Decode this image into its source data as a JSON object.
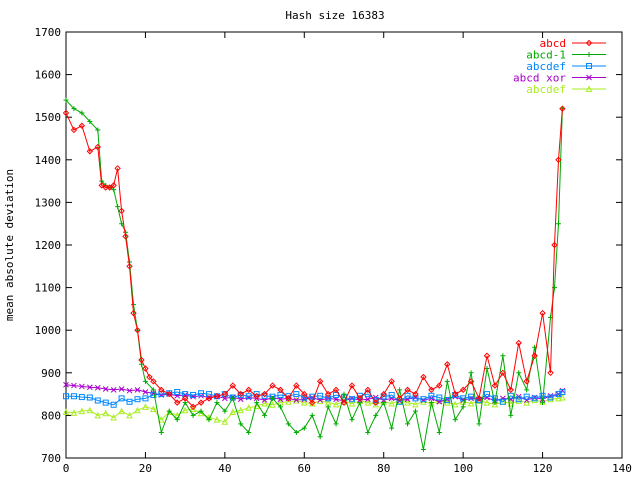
{
  "chart_data": {
    "type": "line",
    "title": "Hash size 16383",
    "xlabel": "",
    "ylabel": "mean absolute deviation",
    "xlim": [
      0,
      140
    ],
    "ylim": [
      700,
      1700
    ],
    "x_ticks": [
      0,
      20,
      40,
      60,
      80,
      100,
      120,
      140
    ],
    "y_ticks": [
      700,
      800,
      900,
      1000,
      1100,
      1200,
      1300,
      1400,
      1500,
      1600,
      1700
    ],
    "grid": false,
    "legend_position": "top-right",
    "series": [
      {
        "name": "abcd",
        "color": "#ff0000",
        "marker": "diamond",
        "x": [
          0,
          2,
          4,
          6,
          8,
          9,
          10,
          11,
          12,
          13,
          14,
          15,
          16,
          17,
          18,
          19,
          20,
          21,
          22,
          24,
          26,
          28,
          30,
          32,
          34,
          36,
          38,
          40,
          42,
          44,
          46,
          48,
          50,
          52,
          54,
          56,
          58,
          60,
          62,
          64,
          66,
          68,
          70,
          72,
          74,
          76,
          78,
          80,
          82,
          84,
          86,
          88,
          90,
          92,
          94,
          96,
          98,
          100,
          102,
          104,
          106,
          108,
          110,
          112,
          114,
          116,
          118,
          120,
          122,
          123,
          124,
          125
        ],
        "y": [
          1510,
          1470,
          1480,
          1420,
          1430,
          1340,
          1335,
          1335,
          1340,
          1380,
          1280,
          1220,
          1150,
          1040,
          1000,
          930,
          910,
          890,
          880,
          860,
          850,
          830,
          840,
          820,
          830,
          840,
          845,
          850,
          870,
          850,
          860,
          845,
          850,
          870,
          860,
          840,
          870,
          850,
          830,
          880,
          850,
          860,
          830,
          870,
          840,
          860,
          830,
          850,
          880,
          840,
          860,
          850,
          890,
          860,
          870,
          920,
          850,
          860,
          880,
          840,
          940,
          870,
          900,
          860,
          970,
          880,
          940,
          1040,
          900,
          1200,
          1400,
          1520
        ]
      },
      {
        "name": "abcd-1",
        "color": "#00aa00",
        "marker": "plus",
        "x": [
          0,
          2,
          4,
          6,
          8,
          9,
          10,
          11,
          12,
          13,
          14,
          15,
          16,
          17,
          18,
          19,
          20,
          22,
          24,
          26,
          28,
          30,
          32,
          34,
          36,
          38,
          40,
          42,
          44,
          46,
          48,
          50,
          52,
          54,
          56,
          58,
          60,
          62,
          64,
          66,
          68,
          70,
          72,
          74,
          76,
          78,
          80,
          82,
          84,
          86,
          88,
          90,
          92,
          94,
          96,
          98,
          100,
          102,
          104,
          106,
          108,
          110,
          112,
          114,
          116,
          118,
          120,
          122,
          123,
          124,
          125
        ],
        "y": [
          1540,
          1520,
          1510,
          1490,
          1470,
          1350,
          1340,
          1335,
          1330,
          1290,
          1250,
          1230,
          1160,
          1060,
          1000,
          920,
          880,
          860,
          760,
          810,
          790,
          830,
          800,
          810,
          790,
          830,
          810,
          840,
          780,
          760,
          830,
          800,
          840,
          820,
          780,
          760,
          770,
          800,
          750,
          820,
          780,
          850,
          790,
          830,
          760,
          800,
          830,
          770,
          860,
          780,
          810,
          720,
          830,
          760,
          880,
          790,
          820,
          900,
          780,
          910,
          830,
          940,
          800,
          900,
          860,
          960,
          830,
          1030,
          1100,
          1250,
          1520
        ]
      },
      {
        "name": "abcdef",
        "color": "#0088ff",
        "marker": "square",
        "x": [
          0,
          2,
          4,
          6,
          8,
          10,
          12,
          14,
          16,
          18,
          20,
          22,
          24,
          26,
          28,
          30,
          32,
          34,
          36,
          38,
          40,
          42,
          44,
          46,
          48,
          50,
          52,
          54,
          56,
          58,
          60,
          62,
          64,
          66,
          68,
          70,
          72,
          74,
          76,
          78,
          80,
          82,
          84,
          86,
          88,
          90,
          92,
          94,
          96,
          98,
          100,
          102,
          104,
          106,
          108,
          110,
          112,
          114,
          116,
          118,
          120,
          122,
          124,
          125
        ],
        "y": [
          845,
          845,
          843,
          842,
          835,
          830,
          825,
          840,
          832,
          838,
          840,
          848,
          850,
          852,
          855,
          850,
          848,
          852,
          850,
          845,
          850,
          842,
          848,
          845,
          850,
          846,
          844,
          848,
          845,
          850,
          842,
          844,
          846,
          840,
          848,
          842,
          838,
          846,
          850,
          836,
          844,
          848,
          832,
          846,
          840,
          838,
          846,
          842,
          836,
          848,
          840,
          844,
          836,
          850,
          840,
          832,
          846,
          838,
          844,
          840,
          846,
          842,
          850,
          855
        ]
      },
      {
        "name": "abcd xor",
        "color": "#aa00cc",
        "marker": "cross",
        "x": [
          0,
          2,
          4,
          6,
          8,
          10,
          12,
          14,
          16,
          18,
          20,
          22,
          24,
          26,
          28,
          30,
          32,
          34,
          36,
          38,
          40,
          42,
          44,
          46,
          48,
          50,
          52,
          54,
          56,
          58,
          60,
          62,
          64,
          66,
          68,
          70,
          72,
          74,
          76,
          78,
          80,
          82,
          84,
          86,
          88,
          90,
          92,
          94,
          96,
          98,
          100,
          102,
          104,
          106,
          108,
          110,
          112,
          114,
          116,
          118,
          120,
          122,
          124,
          125
        ],
        "y": [
          872,
          870,
          868,
          866,
          865,
          862,
          860,
          862,
          858,
          860,
          855,
          852,
          848,
          850,
          846,
          848,
          844,
          846,
          842,
          845,
          840,
          843,
          838,
          842,
          840,
          836,
          842,
          838,
          840,
          836,
          838,
          842,
          836,
          840,
          838,
          834,
          840,
          836,
          838,
          842,
          836,
          840,
          834,
          838,
          842,
          836,
          840,
          832,
          838,
          844,
          836,
          840,
          838,
          842,
          834,
          840,
          838,
          844,
          836,
          842,
          838,
          846,
          850,
          858
        ]
      },
      {
        "name": "abcdef",
        "color": "#aaee22",
        "marker": "triangle",
        "x": [
          0,
          2,
          4,
          6,
          8,
          10,
          12,
          14,
          16,
          18,
          20,
          22,
          24,
          26,
          28,
          30,
          32,
          34,
          36,
          38,
          40,
          42,
          44,
          46,
          48,
          50,
          52,
          54,
          56,
          58,
          60,
          62,
          64,
          66,
          68,
          70,
          72,
          74,
          76,
          78,
          80,
          82,
          84,
          86,
          88,
          90,
          92,
          94,
          96,
          98,
          100,
          102,
          104,
          106,
          108,
          110,
          112,
          114,
          116,
          118,
          120,
          122,
          124,
          125
        ],
        "y": [
          808,
          806,
          810,
          812,
          800,
          805,
          795,
          810,
          800,
          812,
          820,
          815,
          790,
          808,
          800,
          812,
          815,
          805,
          795,
          790,
          785,
          808,
          812,
          818,
          822,
          828,
          825,
          830,
          832,
          835,
          830,
          828,
          834,
          830,
          826,
          832,
          828,
          834,
          830,
          826,
          832,
          828,
          834,
          830,
          826,
          832,
          828,
          834,
          830,
          826,
          832,
          828,
          834,
          830,
          826,
          832,
          828,
          834,
          830,
          836,
          832,
          838,
          840,
          842
        ]
      }
    ]
  }
}
